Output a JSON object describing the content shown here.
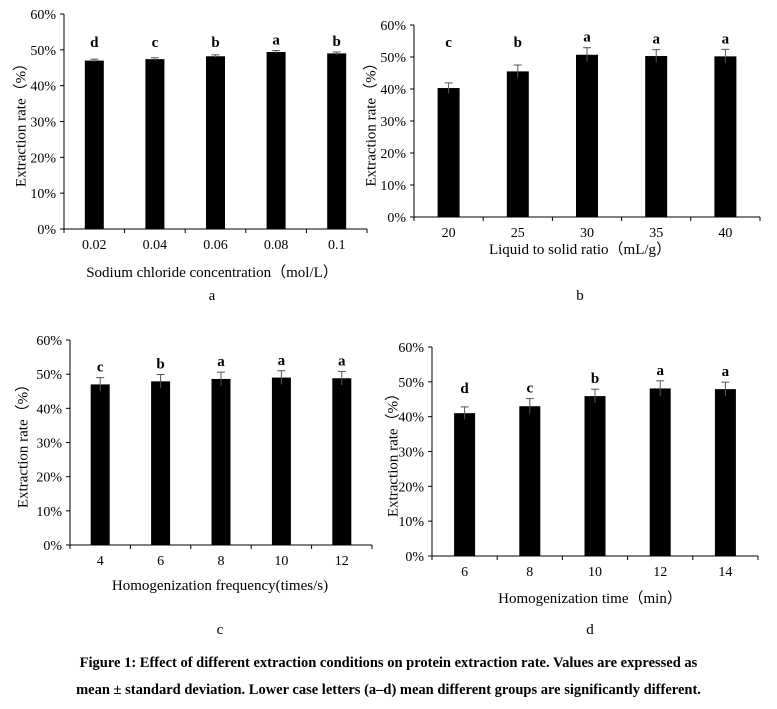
{
  "chart_data": [
    {
      "type": "bar",
      "panel_label": "a",
      "xlabel": "Sodium chloride concentration（mol/L）",
      "ylabel": "Extraction rate（%）",
      "categories": [
        "0.02",
        "0.04",
        "0.06",
        "0.08",
        "0.1"
      ],
      "values": [
        0.47,
        0.474,
        0.482,
        0.494,
        0.49
      ],
      "errors": [
        0.004,
        0.004,
        0.004,
        0.004,
        0.004
      ],
      "significance_letters": [
        "d",
        "c",
        "b",
        "a",
        "b"
      ],
      "ylim": [
        0,
        0.6
      ],
      "yticks": [
        "0%",
        "10%",
        "20%",
        "30%",
        "40%",
        "50%",
        "60%"
      ],
      "grid": false
    },
    {
      "type": "bar",
      "panel_label": "b",
      "xlabel": "Liquid to solid ratio（mL/g）",
      "ylabel": "Extraction rate（%）",
      "categories": [
        "20",
        "25",
        "30",
        "35",
        "40"
      ],
      "values": [
        0.403,
        0.455,
        0.507,
        0.503,
        0.502
      ],
      "errors": [
        0.016,
        0.02,
        0.022,
        0.02,
        0.022
      ],
      "significance_letters": [
        "c",
        "b",
        "a",
        "a",
        "a"
      ],
      "ylim": [
        0,
        0.6
      ],
      "yticks": [
        "0%",
        "10%",
        "20%",
        "30%",
        "40%",
        "50%",
        "60%"
      ],
      "grid": false
    },
    {
      "type": "bar",
      "panel_label": "c",
      "xlabel": "Homogenization frequency(times/s)",
      "ylabel": "Extraction rate（%）",
      "categories": [
        "4",
        "6",
        "8",
        "10",
        "12"
      ],
      "values": [
        0.47,
        0.479,
        0.486,
        0.49,
        0.488
      ],
      "errors": [
        0.02,
        0.02,
        0.02,
        0.02,
        0.02
      ],
      "significance_letters": [
        "c",
        "b",
        "a",
        "a",
        "a"
      ],
      "ylim": [
        0,
        0.6
      ],
      "yticks": [
        "0%",
        "10%",
        "20%",
        "30%",
        "40%",
        "50%",
        "60%"
      ],
      "grid": false
    },
    {
      "type": "bar",
      "panel_label": "d",
      "xlabel": "Homogenization time（min）",
      "ylabel": "Extraction rate（%）",
      "categories": [
        "6",
        "8",
        "10",
        "12",
        "14"
      ],
      "values": [
        0.41,
        0.43,
        0.459,
        0.481,
        0.479
      ],
      "errors": [
        0.018,
        0.022,
        0.02,
        0.022,
        0.02
      ],
      "significance_letters": [
        "d",
        "c",
        "b",
        "a",
        "a"
      ],
      "ylim": [
        0,
        0.6
      ],
      "yticks": [
        "0%",
        "10%",
        "20%",
        "30%",
        "40%",
        "50%",
        "60%"
      ],
      "grid": false
    }
  ],
  "caption": {
    "line1": "Figure 1: Effect of different extraction conditions on protein extraction rate. Values are expressed as",
    "line2": "mean ± standard deviation. Lower case letters (a–d) mean different groups are significantly different."
  }
}
